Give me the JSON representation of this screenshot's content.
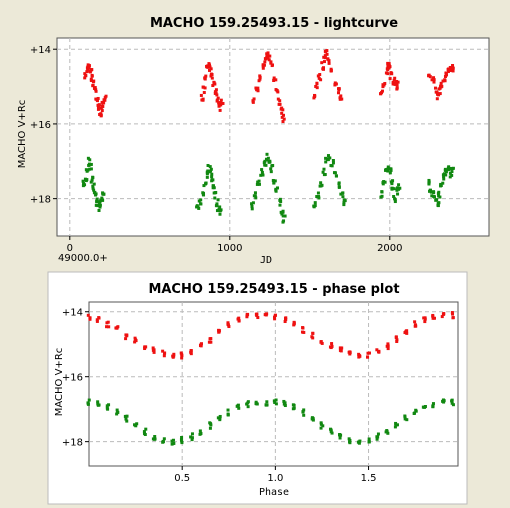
{
  "colors": {
    "background": "#ece9d8",
    "plot_area": "#ffffff",
    "red_series": "#ee1111",
    "green_series": "#118811",
    "grid": "#bbbbbb"
  },
  "chart_data": [
    {
      "type": "scatter",
      "title": "MACHO 159.25493.15 - lightcurve",
      "xlabel": "JD",
      "ylabel": "MACHO V+Rc",
      "x_offset_label": "49000.0+",
      "xlim": [
        -80,
        2620
      ],
      "ylim": [
        19.0,
        13.7
      ],
      "y_inverted": true,
      "grid": true,
      "xticks": [
        0,
        1000,
        2000
      ],
      "yticks": [
        14,
        16,
        18
      ],
      "xtick_labels": [
        "0",
        "1000",
        "2000"
      ],
      "ytick_labels": [
        "+14",
        "+16",
        "+18"
      ],
      "series": [
        {
          "color": "red",
          "points": [
            [
              100,
              14.7
            ],
            [
              110,
              14.55
            ],
            [
              120,
              14.5
            ],
            [
              130,
              14.6
            ],
            [
              140,
              14.75
            ],
            [
              150,
              14.9
            ],
            [
              160,
              15.1
            ],
            [
              170,
              15.35
            ],
            [
              180,
              15.55
            ],
            [
              190,
              15.7
            ],
            [
              200,
              15.6
            ],
            [
              210,
              15.45
            ],
            [
              220,
              15.3
            ],
            [
              830,
              15.3
            ],
            [
              840,
              15.1
            ],
            [
              850,
              14.8
            ],
            [
              860,
              14.55
            ],
            [
              870,
              14.4
            ],
            [
              880,
              14.5
            ],
            [
              890,
              14.7
            ],
            [
              900,
              14.9
            ],
            [
              910,
              15.1
            ],
            [
              920,
              15.3
            ],
            [
              930,
              15.45
            ],
            [
              940,
              15.55
            ],
            [
              950,
              15.45
            ],
            [
              1150,
              15.35
            ],
            [
              1170,
              15.1
            ],
            [
              1190,
              14.8
            ],
            [
              1210,
              14.5
            ],
            [
              1225,
              14.3
            ],
            [
              1235,
              14.1
            ],
            [
              1245,
              14.2
            ],
            [
              1260,
              14.4
            ],
            [
              1280,
              14.8
            ],
            [
              1295,
              15.1
            ],
            [
              1310,
              15.4
            ],
            [
              1325,
              15.65
            ],
            [
              1335,
              15.85
            ],
            [
              1530,
              15.3
            ],
            [
              1545,
              15.0
            ],
            [
              1560,
              14.75
            ],
            [
              1580,
              14.45
            ],
            [
              1595,
              14.25
            ],
            [
              1605,
              14.1
            ],
            [
              1620,
              14.3
            ],
            [
              1640,
              14.6
            ],
            [
              1660,
              14.9
            ],
            [
              1680,
              15.1
            ],
            [
              1695,
              15.3
            ],
            [
              1950,
              15.2
            ],
            [
              1965,
              14.95
            ],
            [
              1980,
              14.6
            ],
            [
              1990,
              14.4
            ],
            [
              2000,
              14.45
            ],
            [
              2010,
              14.7
            ],
            [
              2025,
              14.85
            ],
            [
              2040,
              15.0
            ],
            [
              2050,
              14.95
            ],
            [
              2250,
              14.7
            ],
            [
              2270,
              14.85
            ],
            [
              2290,
              15.1
            ],
            [
              2300,
              15.25
            ],
            [
              2310,
              15.1
            ],
            [
              2320,
              14.95
            ],
            [
              2340,
              14.8
            ],
            [
              2355,
              14.7
            ],
            [
              2370,
              14.6
            ],
            [
              2385,
              14.55
            ],
            [
              2390,
              14.5
            ]
          ]
        },
        {
          "color": "green",
          "points": [
            [
              90,
              17.6
            ],
            [
              100,
              17.45
            ],
            [
              110,
              17.2
            ],
            [
              120,
              17.0
            ],
            [
              130,
              17.15
            ],
            [
              140,
              17.5
            ],
            [
              150,
              17.7
            ],
            [
              160,
              17.9
            ],
            [
              170,
              18.1
            ],
            [
              180,
              18.25
            ],
            [
              190,
              18.15
            ],
            [
              200,
              18.0
            ],
            [
              210,
              17.8
            ],
            [
              800,
              18.25
            ],
            [
              815,
              18.1
            ],
            [
              830,
              17.9
            ],
            [
              845,
              17.6
            ],
            [
              860,
              17.35
            ],
            [
              870,
              17.2
            ],
            [
              880,
              17.3
            ],
            [
              890,
              17.5
            ],
            [
              900,
              17.7
            ],
            [
              910,
              17.9
            ],
            [
              920,
              18.1
            ],
            [
              930,
              18.25
            ],
            [
              945,
              18.35
            ],
            [
              1140,
              18.2
            ],
            [
              1160,
              17.9
            ],
            [
              1180,
              17.6
            ],
            [
              1200,
              17.3
            ],
            [
              1220,
              17.05
            ],
            [
              1235,
              16.9
            ],
            [
              1245,
              16.95
            ],
            [
              1260,
              17.2
            ],
            [
              1280,
              17.5
            ],
            [
              1295,
              17.8
            ],
            [
              1310,
              18.1
            ],
            [
              1325,
              18.35
            ],
            [
              1340,
              18.55
            ],
            [
              1530,
              18.15
            ],
            [
              1550,
              17.9
            ],
            [
              1570,
              17.65
            ],
            [
              1590,
              17.3
            ],
            [
              1605,
              17.0
            ],
            [
              1620,
              16.9
            ],
            [
              1640,
              17.05
            ],
            [
              1660,
              17.35
            ],
            [
              1680,
              17.65
            ],
            [
              1700,
              17.9
            ],
            [
              1715,
              18.1
            ],
            [
              1950,
              17.9
            ],
            [
              1965,
              17.6
            ],
            [
              1980,
              17.3
            ],
            [
              1990,
              17.15
            ],
            [
              2000,
              17.25
            ],
            [
              2010,
              17.55
            ],
            [
              2020,
              17.8
            ],
            [
              2030,
              18.0
            ],
            [
              2045,
              17.8
            ],
            [
              2055,
              17.7
            ],
            [
              2240,
              17.6
            ],
            [
              2255,
              17.75
            ],
            [
              2270,
              17.9
            ],
            [
              2285,
              18.0
            ],
            [
              2300,
              18.1
            ],
            [
              2310,
              17.9
            ],
            [
              2325,
              17.6
            ],
            [
              2340,
              17.4
            ],
            [
              2355,
              17.3
            ],
            [
              2370,
              17.2
            ],
            [
              2385,
              17.35
            ],
            [
              2390,
              17.25
            ]
          ]
        }
      ]
    },
    {
      "type": "scatter",
      "title": "MACHO 159.25493.15 - phase plot",
      "xlabel": "Phase",
      "ylabel": "MACHO V+Rc",
      "xlim": [
        0,
        1.98
      ],
      "ylim": [
        18.75,
        13.7
      ],
      "y_inverted": true,
      "grid": true,
      "xticks": [
        0.5,
        1.0,
        1.5
      ],
      "yticks": [
        14,
        16,
        18
      ],
      "xtick_labels": [
        "0.5",
        "1.0",
        "1.5"
      ],
      "ytick_labels": [
        "+14",
        "+16",
        "+18"
      ],
      "series": [
        {
          "color": "red",
          "mean_mag": 14.75,
          "amplitude": 0.65,
          "points": [
            [
              0.0,
              14.15
            ],
            [
              0.05,
              14.25
            ],
            [
              0.1,
              14.4
            ],
            [
              0.15,
              14.55
            ],
            [
              0.2,
              14.75
            ],
            [
              0.25,
              14.9
            ],
            [
              0.3,
              15.05
            ],
            [
              0.35,
              15.2
            ],
            [
              0.4,
              15.3
            ],
            [
              0.45,
              15.4
            ],
            [
              0.5,
              15.35
            ],
            [
              0.55,
              15.25
            ],
            [
              0.6,
              15.05
            ],
            [
              0.65,
              14.85
            ],
            [
              0.7,
              14.6
            ],
            [
              0.75,
              14.4
            ],
            [
              0.8,
              14.25
            ],
            [
              0.85,
              14.15
            ],
            [
              0.9,
              14.1
            ],
            [
              0.95,
              14.1
            ],
            [
              1.0,
              14.15
            ],
            [
              1.05,
              14.25
            ],
            [
              1.1,
              14.4
            ],
            [
              1.15,
              14.55
            ],
            [
              1.2,
              14.75
            ],
            [
              1.25,
              14.9
            ],
            [
              1.3,
              15.05
            ],
            [
              1.35,
              15.2
            ],
            [
              1.4,
              15.3
            ],
            [
              1.45,
              15.4
            ],
            [
              1.5,
              15.35
            ],
            [
              1.55,
              15.25
            ],
            [
              1.6,
              15.05
            ],
            [
              1.65,
              14.85
            ],
            [
              1.7,
              14.6
            ],
            [
              1.75,
              14.4
            ],
            [
              1.8,
              14.25
            ],
            [
              1.85,
              14.15
            ],
            [
              1.9,
              14.1
            ],
            [
              1.95,
              14.1
            ]
          ]
        },
        {
          "color": "green",
          "mean_mag": 17.4,
          "amplitude": 0.6,
          "points": [
            [
              0.0,
              16.8
            ],
            [
              0.05,
              16.85
            ],
            [
              0.1,
              16.95
            ],
            [
              0.15,
              17.1
            ],
            [
              0.2,
              17.3
            ],
            [
              0.25,
              17.5
            ],
            [
              0.3,
              17.7
            ],
            [
              0.35,
              17.85
            ],
            [
              0.4,
              17.95
            ],
            [
              0.45,
              18.0
            ],
            [
              0.5,
              17.95
            ],
            [
              0.55,
              17.85
            ],
            [
              0.6,
              17.7
            ],
            [
              0.65,
              17.5
            ],
            [
              0.7,
              17.3
            ],
            [
              0.75,
              17.1
            ],
            [
              0.8,
              16.95
            ],
            [
              0.85,
              16.85
            ],
            [
              0.9,
              16.8
            ],
            [
              0.95,
              16.8
            ],
            [
              1.0,
              16.8
            ],
            [
              1.05,
              16.85
            ],
            [
              1.1,
              16.95
            ],
            [
              1.15,
              17.1
            ],
            [
              1.2,
              17.3
            ],
            [
              1.25,
              17.5
            ],
            [
              1.3,
              17.7
            ],
            [
              1.35,
              17.85
            ],
            [
              1.4,
              17.95
            ],
            [
              1.45,
              18.0
            ],
            [
              1.5,
              17.95
            ],
            [
              1.55,
              17.85
            ],
            [
              1.6,
              17.7
            ],
            [
              1.65,
              17.5
            ],
            [
              1.7,
              17.3
            ],
            [
              1.75,
              17.1
            ],
            [
              1.8,
              16.95
            ],
            [
              1.85,
              16.85
            ],
            [
              1.9,
              16.8
            ],
            [
              1.95,
              16.8
            ]
          ]
        }
      ]
    }
  ]
}
